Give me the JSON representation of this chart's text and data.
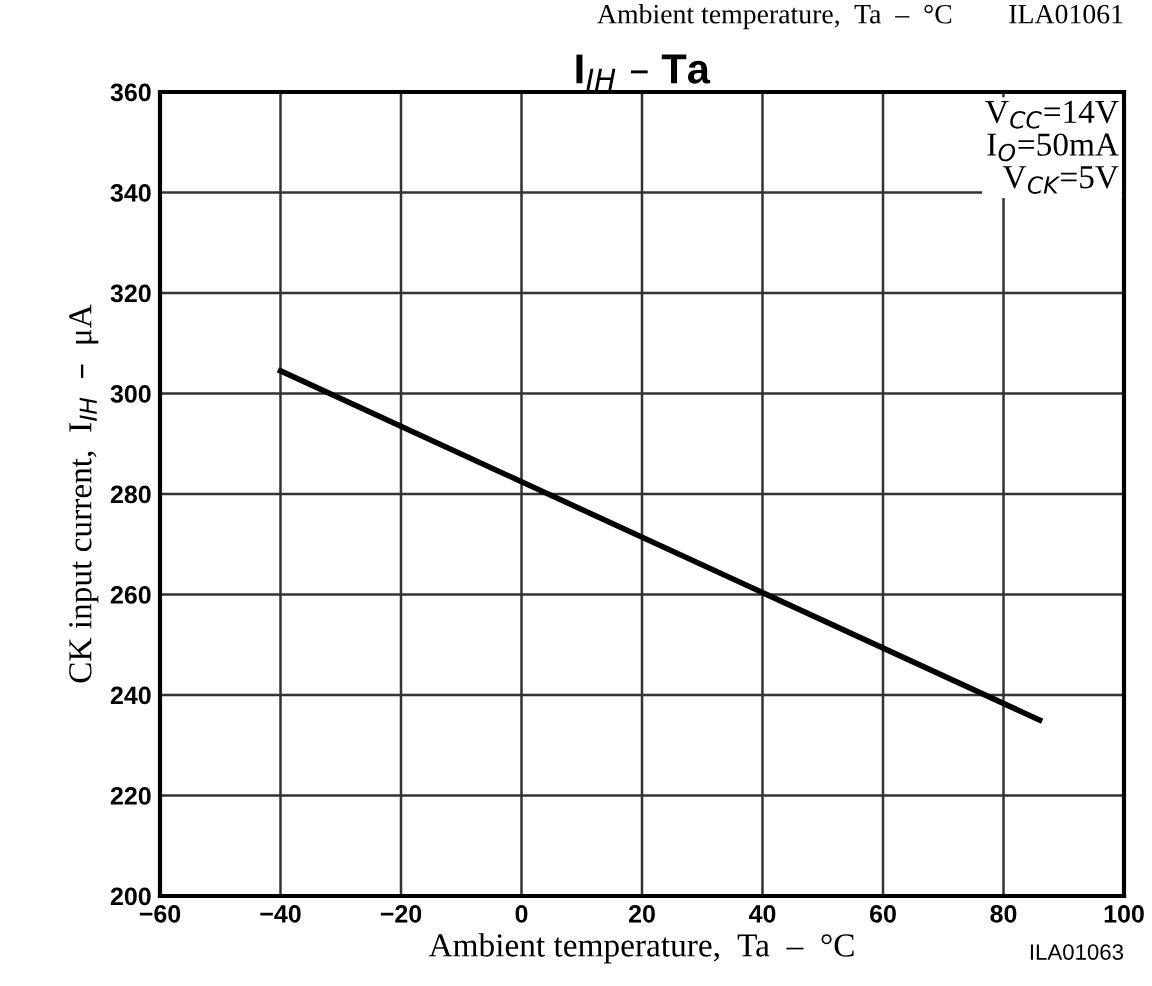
{
  "chart_data": {
    "type": "line",
    "title": "I$_{IH}$ – Ta",
    "xlabel": "Ambient temperature,  Ta  –  °C",
    "ylabel": "CK input current,  I$_{IH}$  –  μA",
    "annotations": [
      "V$_{CC}$=14V\nI$_{O}$=50mA\nV$_{CK}$=5V",
      "ILA01063",
      "Ambient temperature,  Ta  –  °C        ILA01061"
    ],
    "series": [
      {
        "color": "#000000",
        "x": [
          -40,
          86
        ],
        "values": [
          304.5,
          235
        ]
      }
    ],
    "xlim": [
      -60,
      100
    ],
    "xticks": [
      {
        "value": -60,
        "label": "−60"
      },
      {
        "value": -40,
        "label": "−40"
      },
      {
        "value": -20,
        "label": "−20"
      },
      0,
      20,
      40,
      60,
      80,
      100
    ],
    "ylim": [
      200,
      360
    ],
    "yticks": [
      200,
      220,
      240,
      260,
      280,
      300,
      320,
      340,
      360
    ],
    "grid": true,
    "legend": false,
    "marker": "none",
    "line_style": "solid"
  }
}
